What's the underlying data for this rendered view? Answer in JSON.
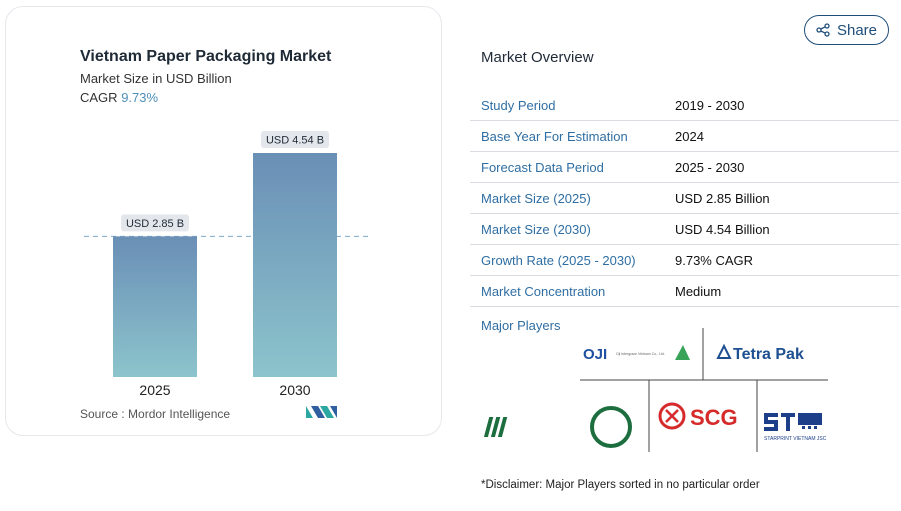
{
  "card": {
    "title": "Vietnam Paper Packaging Market",
    "subtitle": "Market Size in USD Billion",
    "cagr_label": "CAGR",
    "cagr_value": "9.73%",
    "source": "Source :  Mordor Intelligence",
    "logo_icon": "mordor-intelligence-logo-icon"
  },
  "chart_data": {
    "type": "bar",
    "categories": [
      "2025",
      "2030"
    ],
    "values": [
      2.85,
      4.54
    ],
    "data_labels": [
      "USD 2.85 B",
      "USD 4.54 B"
    ],
    "title": "Vietnam Paper Packaging Market",
    "subtitle": "Market Size in USD Billion",
    "xlabel": "",
    "ylabel": "",
    "ylim": [
      0,
      4.54
    ],
    "grid": false,
    "reference_line": 2.85,
    "colors": {
      "bar_top": "#6a8fb6",
      "bar_bottom": "#8cc4cc",
      "reference_line": "#7aa9c9"
    }
  },
  "share": {
    "label": "Share",
    "icon": "share-icon"
  },
  "overview": {
    "title": "Market Overview",
    "rows": [
      {
        "key": "Study Period",
        "value": "2019 - 2030"
      },
      {
        "key": "Base Year For Estimation",
        "value": "2024"
      },
      {
        "key": "Forecast Data Period",
        "value": "2025 - 2030"
      },
      {
        "key": "Market Size (2025)",
        "value": "USD 2.85 Billion"
      },
      {
        "key": "Market Size (2030)",
        "value": "USD 4.54 Billion"
      },
      {
        "key": "Growth Rate (2025 - 2030)",
        "value": "9.73% CAGR"
      },
      {
        "key": "Market Concentration",
        "value": "Medium"
      }
    ]
  },
  "players": {
    "title": "Major Players",
    "oji": "OJI",
    "oji_sub": "Oji Intergraze Vietnam Co., Ltd.",
    "tetra": "Tetra Pak",
    "scg": "SCG",
    "starprint": "STARPRINT VIETNAM JSC"
  },
  "disclaimer": "*Disclaimer: Major Players sorted in no particular order"
}
